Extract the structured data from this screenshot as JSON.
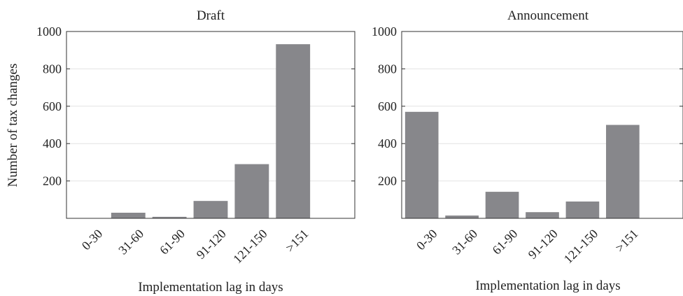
{
  "chart_data": [
    {
      "type": "bar",
      "title": "Draft",
      "xlabel": "Implementation lag in days",
      "ylabel": "Number of tax changes",
      "categories": [
        "0-30",
        "31-60",
        "61-90",
        "91-120",
        "121-150",
        ">151"
      ],
      "values": [
        0,
        30,
        8,
        93,
        290,
        932
      ],
      "ylim": [
        0,
        1000
      ],
      "yticks": [
        200,
        400,
        600,
        800,
        1000
      ],
      "grid": "horizontal",
      "bar_color": "#87878b"
    },
    {
      "type": "bar",
      "title": "Announcement",
      "xlabel": "Implementation lag in days",
      "ylabel": "",
      "categories": [
        "0-30",
        "31-60",
        "61-90",
        "91-120",
        "121-150",
        ">151"
      ],
      "values": [
        570,
        15,
        142,
        33,
        90,
        500
      ],
      "ylim": [
        0,
        1000
      ],
      "yticks": [
        200,
        400,
        600,
        800,
        1000
      ],
      "grid": "horizontal",
      "bar_color": "#87878b"
    }
  ]
}
